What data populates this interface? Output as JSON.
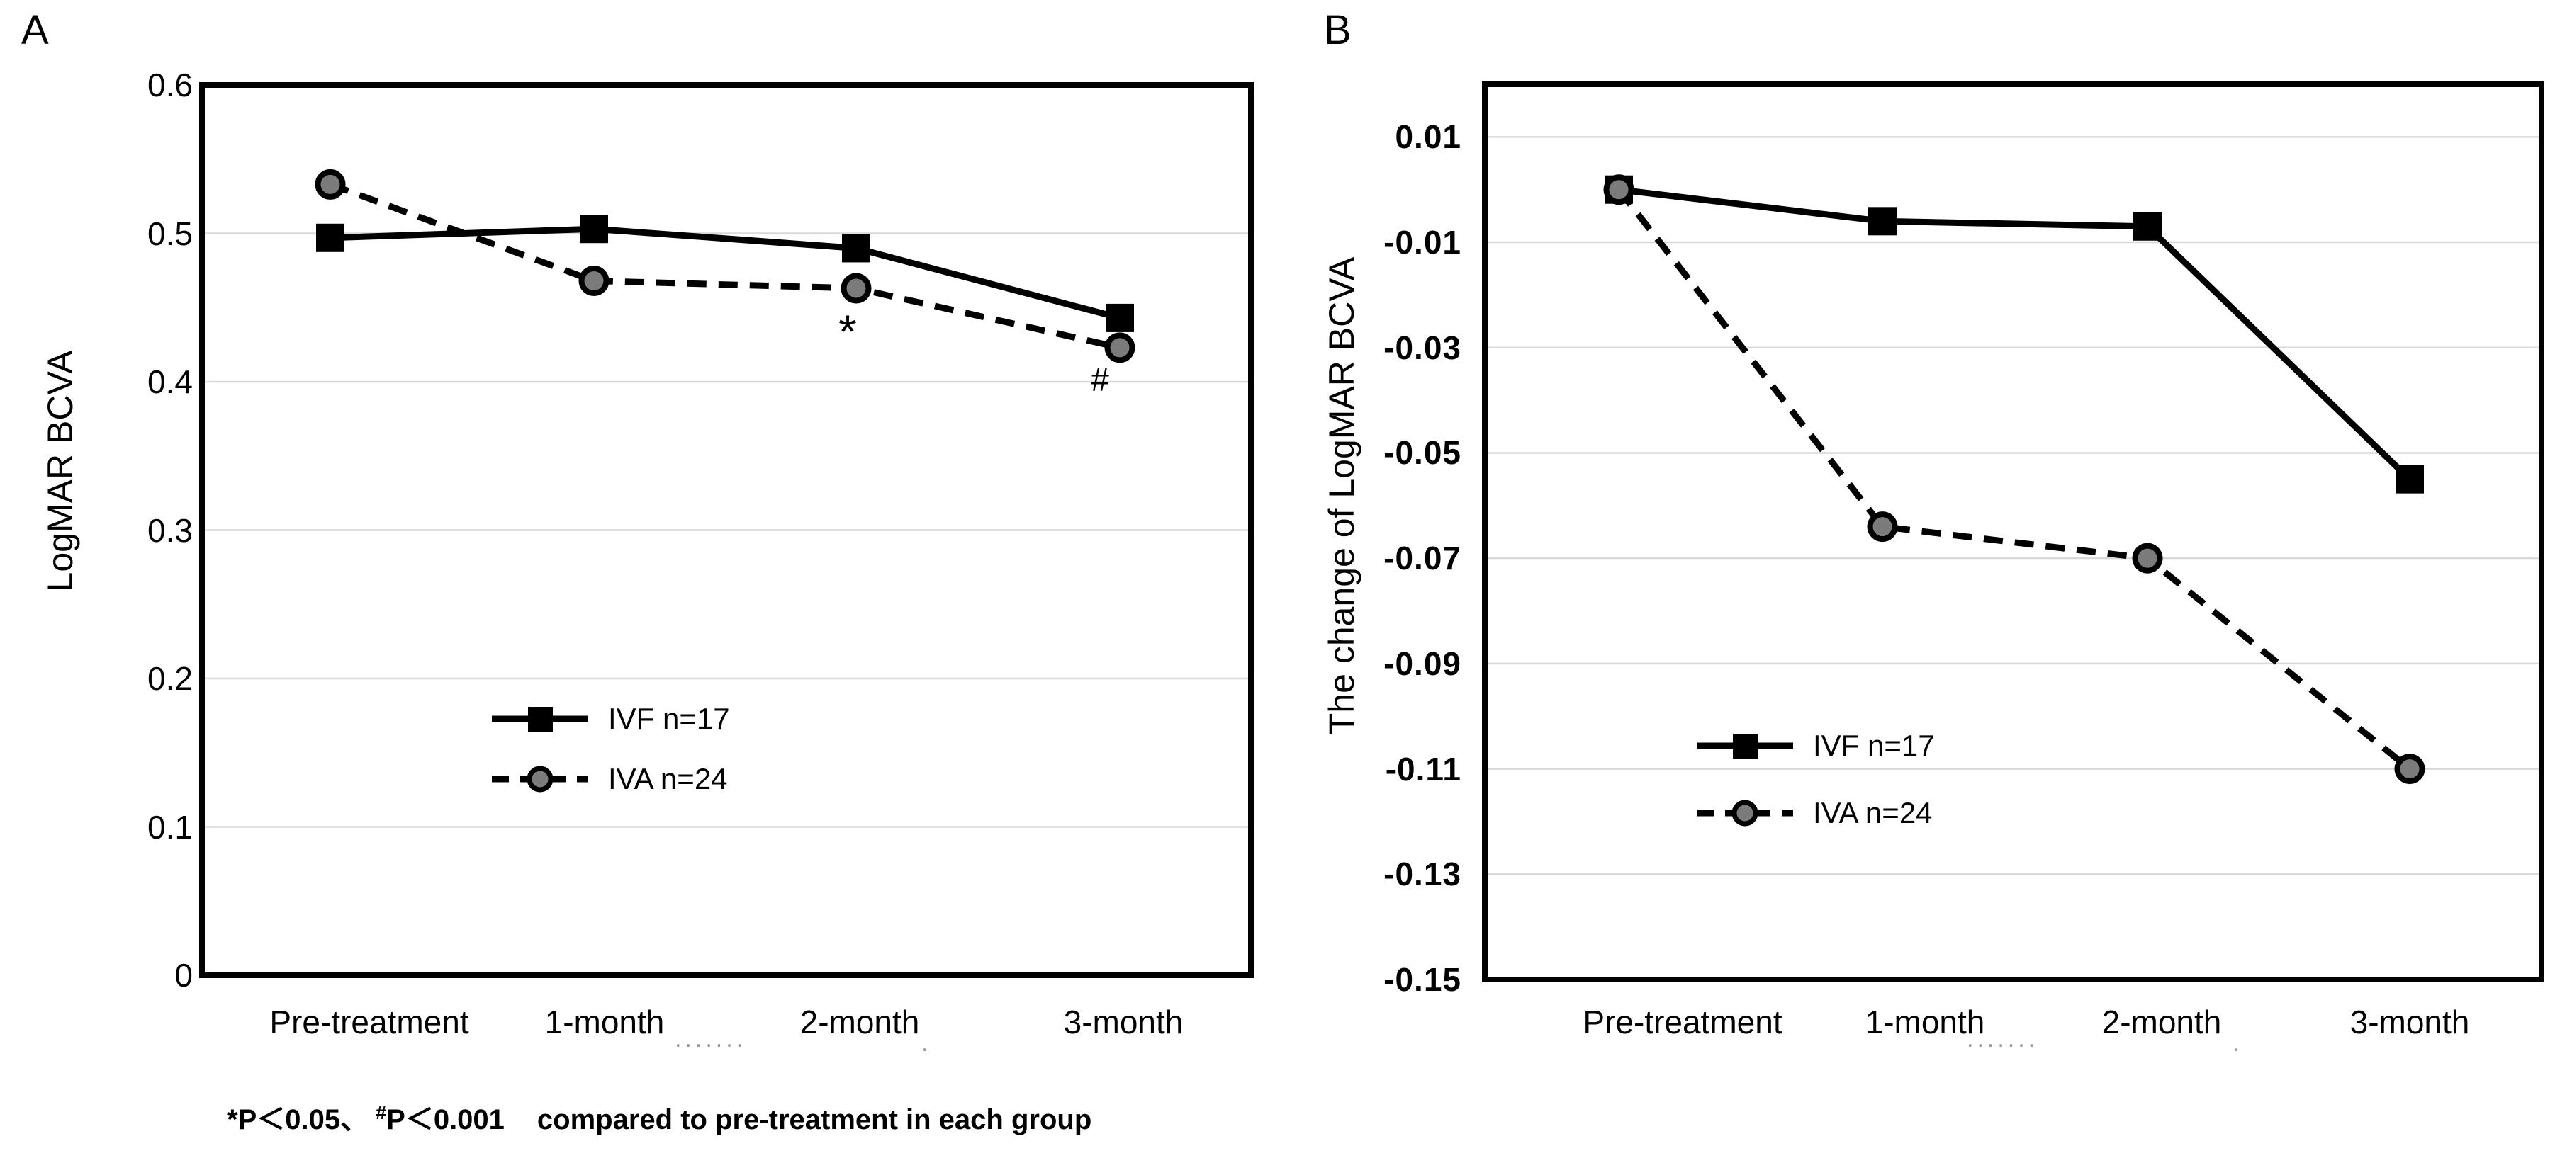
{
  "figure": {
    "panel_a_label": "A",
    "panel_b_label": "B",
    "footnote": {
      "part1": "*P＜0.05、",
      "sup_symbol": "#",
      "part2": "P＜0.001",
      "part3": "compared to pre-treatment in each group"
    }
  },
  "chart_data": [
    {
      "panel": "A",
      "type": "line",
      "title": "",
      "xlabel": "",
      "ylabel": "LogMAR BCVA",
      "ylim": [
        0,
        0.6
      ],
      "yticks": [
        0,
        0.1,
        0.2,
        0.3,
        0.4,
        0.5,
        0.6
      ],
      "ytick_labels": [
        "0",
        "0.1",
        "0.2",
        "0.3",
        "0.4",
        "0.5",
        "0.6"
      ],
      "categories": [
        "Pre-treatment",
        "1-month",
        "2-month",
        "3-month"
      ],
      "grid": "horizontal-light",
      "legend_position": "inside-lower-center",
      "series": [
        {
          "name": "IVF n=17",
          "line": "solid",
          "marker": "square",
          "color": "#000000",
          "marker_fill": "#000000",
          "values": [
            0.497,
            0.503,
            0.49,
            0.443
          ]
        },
        {
          "name": "IVA n=24",
          "line": "dashed",
          "marker": "circle",
          "color": "#000000",
          "marker_fill": "#7b7b7b",
          "values": [
            0.533,
            0.468,
            0.463,
            0.423
          ]
        }
      ],
      "annotations": [
        {
          "text": "*",
          "category": "2-month",
          "attached_to": "IVA n=24",
          "meaning": "P<0.05 compared to pre-treatment"
        },
        {
          "text": "#",
          "category": "3-month",
          "attached_to": "IVA n=24",
          "meaning": "P<0.001 compared to pre-treatment"
        }
      ],
      "xlabel_artifacts": {
        "between_1_and_2_month": ".......",
        "after_2_month": "."
      }
    },
    {
      "panel": "B",
      "type": "line",
      "title": "",
      "xlabel": "",
      "ylabel": "The change of LogMAR BCVA",
      "ylim": [
        -0.15,
        0.02
      ],
      "yticks": [
        0.01,
        -0.01,
        -0.03,
        -0.05,
        -0.07,
        -0.09,
        -0.11,
        -0.13,
        -0.15
      ],
      "ytick_labels": [
        "0.01",
        "-0.01",
        "-0.03",
        "-0.05",
        "-0.07",
        "-0.09",
        "-0.11",
        "-0.13",
        "-0.15"
      ],
      "categories": [
        "Pre-treatment",
        "1-month",
        "2-month",
        "3-month"
      ],
      "grid": "horizontal-light",
      "legend_position": "inside-lower-left",
      "series": [
        {
          "name": "IVF n=17",
          "line": "solid",
          "marker": "square",
          "color": "#000000",
          "marker_fill": "#000000",
          "values": [
            0.0,
            -0.006,
            -0.007,
            -0.055
          ]
        },
        {
          "name": "IVA n=24",
          "line": "dashed",
          "marker": "circle",
          "color": "#000000",
          "marker_fill": "#7b7b7b",
          "values": [
            0.0,
            -0.064,
            -0.07,
            -0.11
          ]
        }
      ],
      "annotations": [],
      "xlabel_artifacts": {
        "between_1_and_2_month": ".......",
        "after_2_month": "."
      }
    }
  ],
  "style": {
    "series_color": "#000000",
    "circle_fill": "#7b7b7b",
    "gridline_color": "#d9d9d9",
    "frame_color": "#000000",
    "background": "#ffffff"
  }
}
